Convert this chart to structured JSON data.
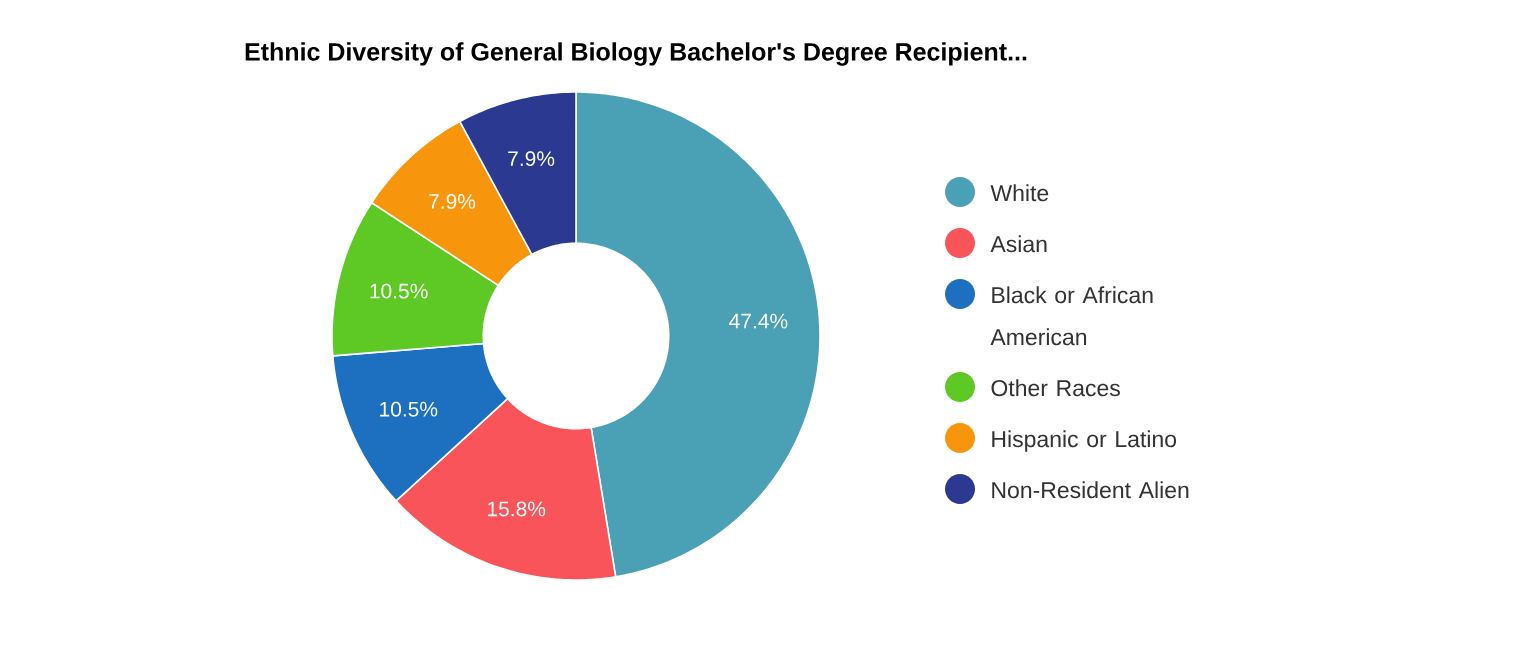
{
  "chart_data": {
    "type": "donut",
    "title": "Ethnic Diversity of General Biology Bachelor's Degree Recipient...",
    "categories": [
      "White",
      "Asian",
      "Black or African American",
      "Other Races",
      "Hispanic or Latino",
      "Non-Resident Alien"
    ],
    "values": [
      47.4,
      15.8,
      10.5,
      10.5,
      7.9,
      7.9
    ],
    "colors": [
      "#4aa0b4",
      "#f8545a",
      "#1c70bf",
      "#5ec824",
      "#f7960c",
      "#2b3990"
    ],
    "value_labels": [
      "47.4%",
      "15.8%",
      "10.5%",
      "10.5%",
      "7.9%",
      "7.9%"
    ],
    "legend": "right"
  }
}
